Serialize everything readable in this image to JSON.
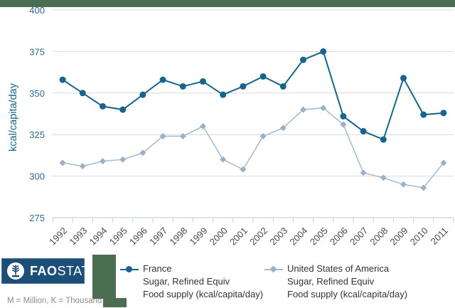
{
  "header": {
    "bar_color": "#4a6e4f"
  },
  "branding": {
    "logo_fao_bold": "FAO",
    "logo_stat": "STAT",
    "logo_bg": "#1d4e78",
    "footnote": "M = Million, K = Thousand",
    "accent_green": "#4a6e4f"
  },
  "chart_data": {
    "type": "line",
    "title": "",
    "xlabel": "",
    "ylabel": "kcal/capita/day",
    "ylim": [
      275,
      400
    ],
    "yticks": [
      275,
      300,
      325,
      350,
      375,
      400
    ],
    "grid": true,
    "legend_position": "bottom",
    "categories": [
      "1992",
      "1993",
      "1994",
      "1995",
      "1996",
      "1997",
      "1998",
      "1999",
      "2000",
      "2001",
      "2002",
      "2003",
      "2004",
      "2005",
      "2006",
      "2007",
      "2008",
      "2009",
      "2010",
      "2011"
    ],
    "series": [
      {
        "name": "France",
        "subtitle1": "Sugar, Refined Equiv",
        "subtitle2": "Food supply (kcal/capita/day)",
        "color": "#17648d",
        "marker": "circle",
        "values": [
          358,
          350,
          342,
          340,
          349,
          358,
          354,
          357,
          349,
          354,
          360,
          354,
          370,
          375,
          336,
          327,
          322,
          359,
          337,
          338
        ]
      },
      {
        "name": "United States of America",
        "subtitle1": "Sugar, Refined Equiv",
        "subtitle2": "Food supply (kcal/capita/day)",
        "color": "#a6bac9",
        "marker": "diamond",
        "marker_color": "#9cb2c4",
        "values": [
          308,
          306,
          309,
          310,
          314,
          324,
          324,
          330,
          310,
          304,
          324,
          329,
          340,
          341,
          331,
          302,
          299,
          295,
          293,
          308
        ]
      }
    ],
    "axis_colors": {
      "gridline": "#d9d9d9",
      "axis_line": "#b5cedd",
      "tick": "#c3d2dc",
      "y_label": "#33688e",
      "y_title": "#176586",
      "x_label": "#4a4a4a"
    }
  }
}
